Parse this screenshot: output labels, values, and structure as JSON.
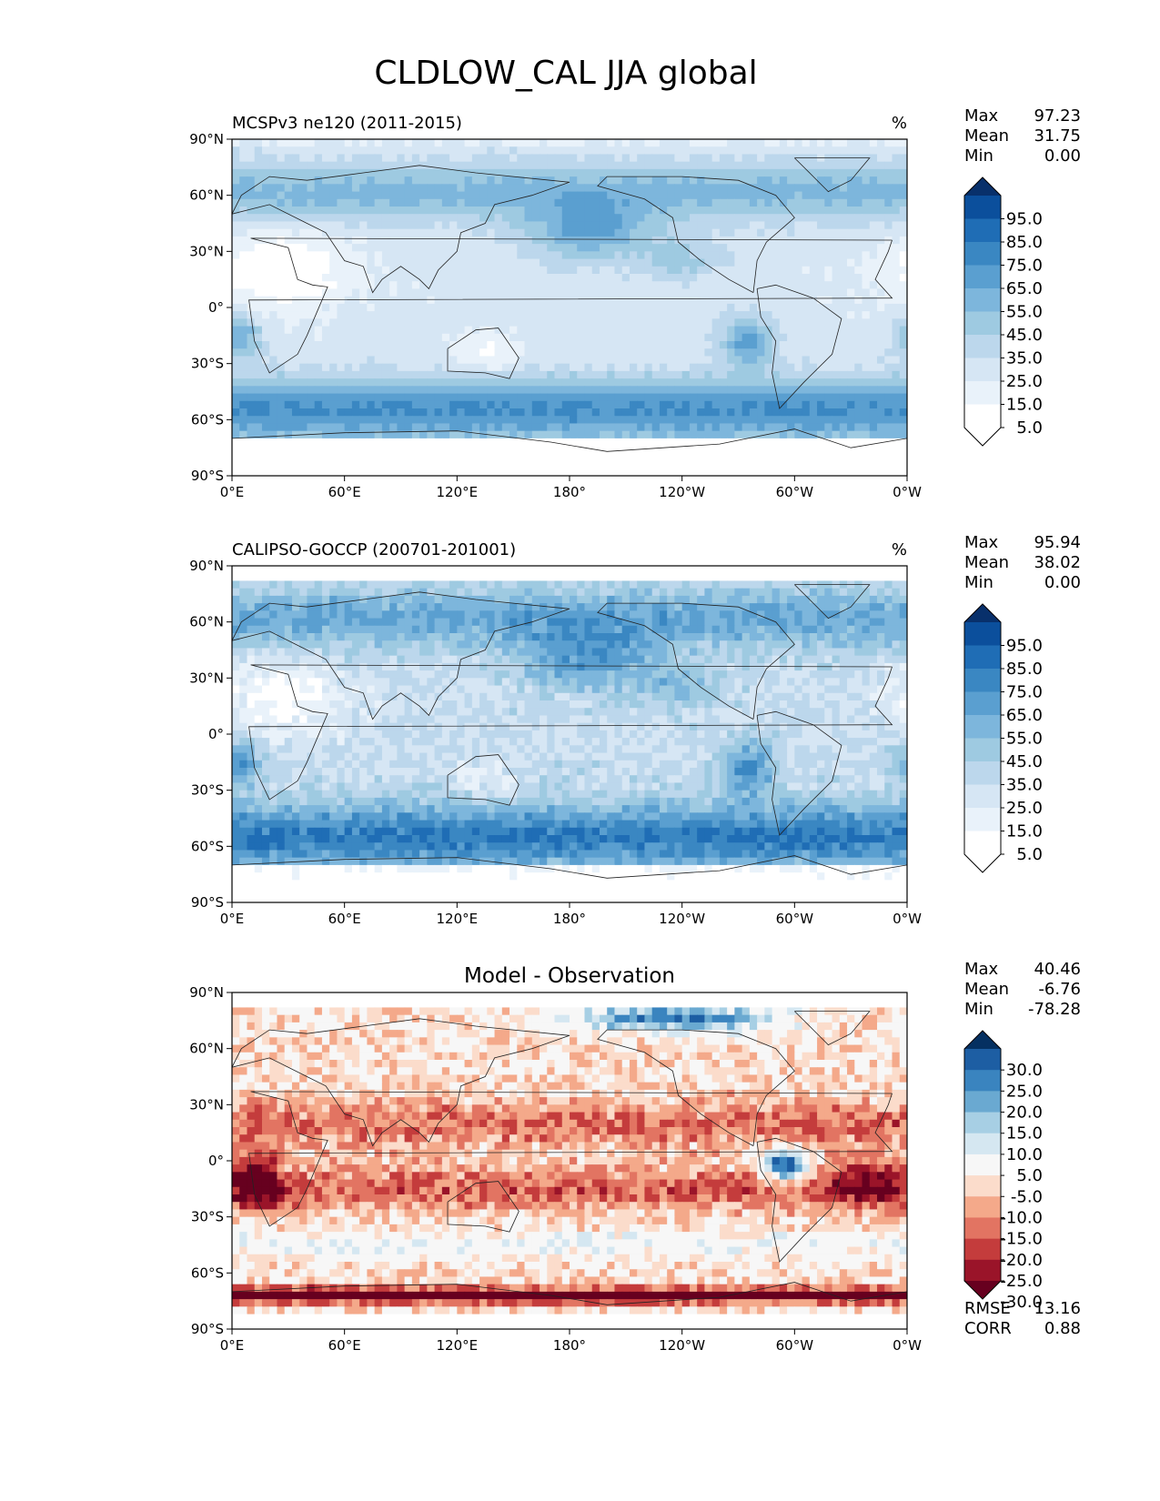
{
  "figure": {
    "title": "CLDLOW_CAL JJA global"
  },
  "chart_data": [
    {
      "type": "heatmap",
      "title": "MCSPv3 ne120 (2011-2015)",
      "units": "%",
      "stats": [
        {
          "label": "Max",
          "value": "97.23"
        },
        {
          "label": "Mean",
          "value": "31.75"
        },
        {
          "label": "Min",
          "value": "0.00"
        }
      ],
      "x_ticks": [
        "0°E",
        "60°E",
        "120°E",
        "180°",
        "120°W",
        "60°W",
        "0°W"
      ],
      "y_ticks": [
        "90°N",
        "60°N",
        "30°N",
        "0°",
        "30°S",
        "60°S",
        "90°S"
      ],
      "xlim": [
        0,
        360
      ],
      "ylim": [
        -90,
        90
      ],
      "colorbar": {
        "labels": [
          "95.0",
          "85.0",
          "75.0",
          "65.0",
          "55.0",
          "45.0",
          "35.0",
          "25.0",
          "15.0",
          "5.0"
        ],
        "colors": [
          "#08306b",
          "#0b4f9c",
          "#1f6db5",
          "#3a87c2",
          "#5a9fd0",
          "#7db6dc",
          "#9ecae1",
          "#bcd7ec",
          "#d6e6f4",
          "#e9f2fa",
          "#ffffff",
          "#ffffff"
        ],
        "extend": "both"
      },
      "field": "model",
      "footer_stats": []
    },
    {
      "type": "heatmap",
      "title": "CALIPSO-GOCCP (200701-201001)",
      "units": "%",
      "stats": [
        {
          "label": "Max",
          "value": "95.94"
        },
        {
          "label": "Mean",
          "value": "38.02"
        },
        {
          "label": "Min",
          "value": "0.00"
        }
      ],
      "x_ticks": [
        "0°E",
        "60°E",
        "120°E",
        "180°",
        "120°W",
        "60°W",
        "0°W"
      ],
      "y_ticks": [
        "90°N",
        "60°N",
        "30°N",
        "0°",
        "30°S",
        "60°S",
        "90°S"
      ],
      "xlim": [
        0,
        360
      ],
      "ylim": [
        -90,
        90
      ],
      "colorbar": {
        "labels": [
          "95.0",
          "85.0",
          "75.0",
          "65.0",
          "55.0",
          "45.0",
          "35.0",
          "25.0",
          "15.0",
          "5.0"
        ],
        "colors": [
          "#08306b",
          "#0b4f9c",
          "#1f6db5",
          "#3a87c2",
          "#5a9fd0",
          "#7db6dc",
          "#9ecae1",
          "#bcd7ec",
          "#d6e6f4",
          "#e9f2fa",
          "#ffffff",
          "#ffffff"
        ],
        "extend": "both"
      },
      "field": "obs",
      "footer_stats": []
    },
    {
      "type": "heatmap",
      "title": "Model - Observation",
      "units": "",
      "stats": [
        {
          "label": "Max",
          "value": "40.46"
        },
        {
          "label": "Mean",
          "value": "-6.76"
        },
        {
          "label": "Min",
          "value": "-78.28"
        }
      ],
      "x_ticks": [
        "0°E",
        "60°E",
        "120°E",
        "180°",
        "120°W",
        "60°W",
        "0°W"
      ],
      "y_ticks": [
        "90°N",
        "60°N",
        "30°N",
        "0°",
        "30°S",
        "60°S",
        "90°S"
      ],
      "xlim": [
        0,
        360
      ],
      "ylim": [
        -90,
        90
      ],
      "colorbar": {
        "labels": [
          "30.0",
          "25.0",
          "20.0",
          "15.0",
          "10.0",
          "5.0",
          "-5.0",
          "-10.0",
          "-15.0",
          "-20.0",
          "-25.0",
          "-30.0"
        ],
        "colors": [
          "#053061",
          "#1d5ea3",
          "#3a84bf",
          "#6aa9d1",
          "#a7cfe4",
          "#d5e7f1",
          "#f7f7f7",
          "#fbdccb",
          "#f4a98a",
          "#e27462",
          "#c43c3c",
          "#9a1429",
          "#67001f"
        ],
        "extend": "both"
      },
      "field": "diff",
      "footer_stats": [
        {
          "label": "RMSE",
          "value": "13.16"
        },
        {
          "label": "CORR",
          "value": "0.88"
        }
      ]
    }
  ]
}
